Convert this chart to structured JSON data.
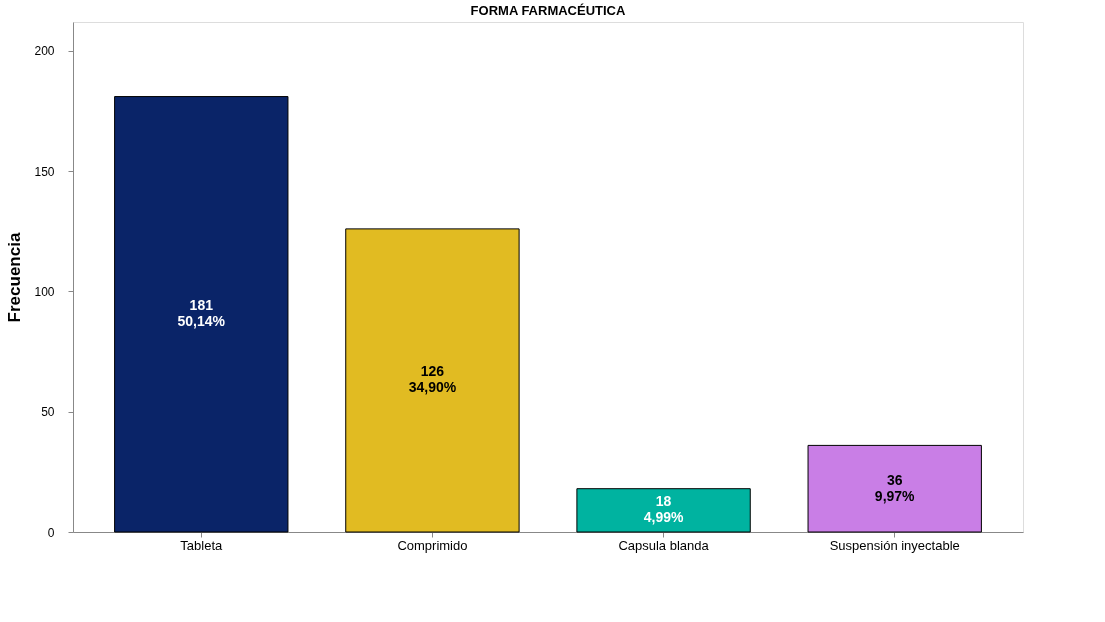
{
  "chart_data": {
    "type": "bar",
    "title": "FORMA FARMACÉUTICA",
    "ylabel": "Frecuencia",
    "categories": [
      "Tableta",
      "Comprimido",
      "Capsula blanda",
      "Suspensión inyectable"
    ],
    "values": [
      181,
      126,
      18,
      36
    ],
    "colors": [
      "#0a2468",
      "#e1bb22",
      "#00b3a0",
      "#c97ee6"
    ],
    "value_labels": [
      "181\n50,14%",
      "126\n34,90%",
      "18\n4,99%",
      "36\n9,97%"
    ],
    "ylim": [
      0,
      212
    ],
    "yticks": [
      0,
      50,
      100,
      150,
      200
    ],
    "grid": false
  }
}
